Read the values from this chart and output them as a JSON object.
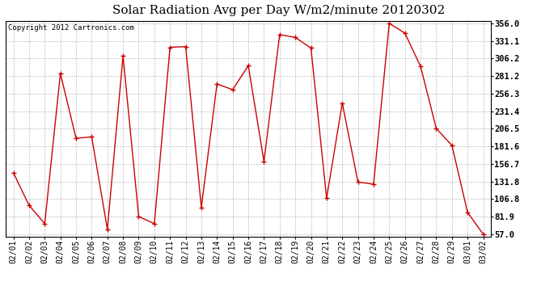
{
  "title": "Solar Radiation Avg per Day W/m2/minute 20120302",
  "copyright_text": "Copyright 2012 Cartronics.com",
  "dates": [
    "02/01",
    "02/02",
    "02/03",
    "02/04",
    "02/05",
    "02/06",
    "02/07",
    "02/08",
    "02/09",
    "02/10",
    "02/11",
    "02/12",
    "02/13",
    "02/14",
    "02/15",
    "02/16",
    "02/17",
    "02/18",
    "02/19",
    "02/20",
    "02/21",
    "02/22",
    "02/23",
    "02/24",
    "02/25",
    "02/26",
    "02/27",
    "02/28",
    "02/29",
    "03/01",
    "03/02"
  ],
  "values": [
    144,
    98,
    72,
    285,
    193,
    195,
    64,
    310,
    82,
    72,
    322,
    323,
    95,
    270,
    262,
    296,
    160,
    340,
    336,
    321,
    108,
    243,
    131,
    128,
    356,
    342,
    295,
    207,
    183,
    88,
    57
  ],
  "line_color": "#cc0000",
  "marker": "+",
  "background_color": "#ffffff",
  "plot_bg_color": "#ffffff",
  "grid_color": "#bbbbbb",
  "yticks": [
    57.0,
    81.9,
    106.8,
    131.8,
    156.7,
    181.6,
    206.5,
    231.4,
    256.3,
    281.2,
    306.2,
    331.1,
    356.0
  ],
  "ymin": 57.0,
  "ymax": 356.0,
  "title_fontsize": 11,
  "copyright_fontsize": 6.5,
  "tick_fontsize": 7,
  "ytick_fontsize": 7.5
}
